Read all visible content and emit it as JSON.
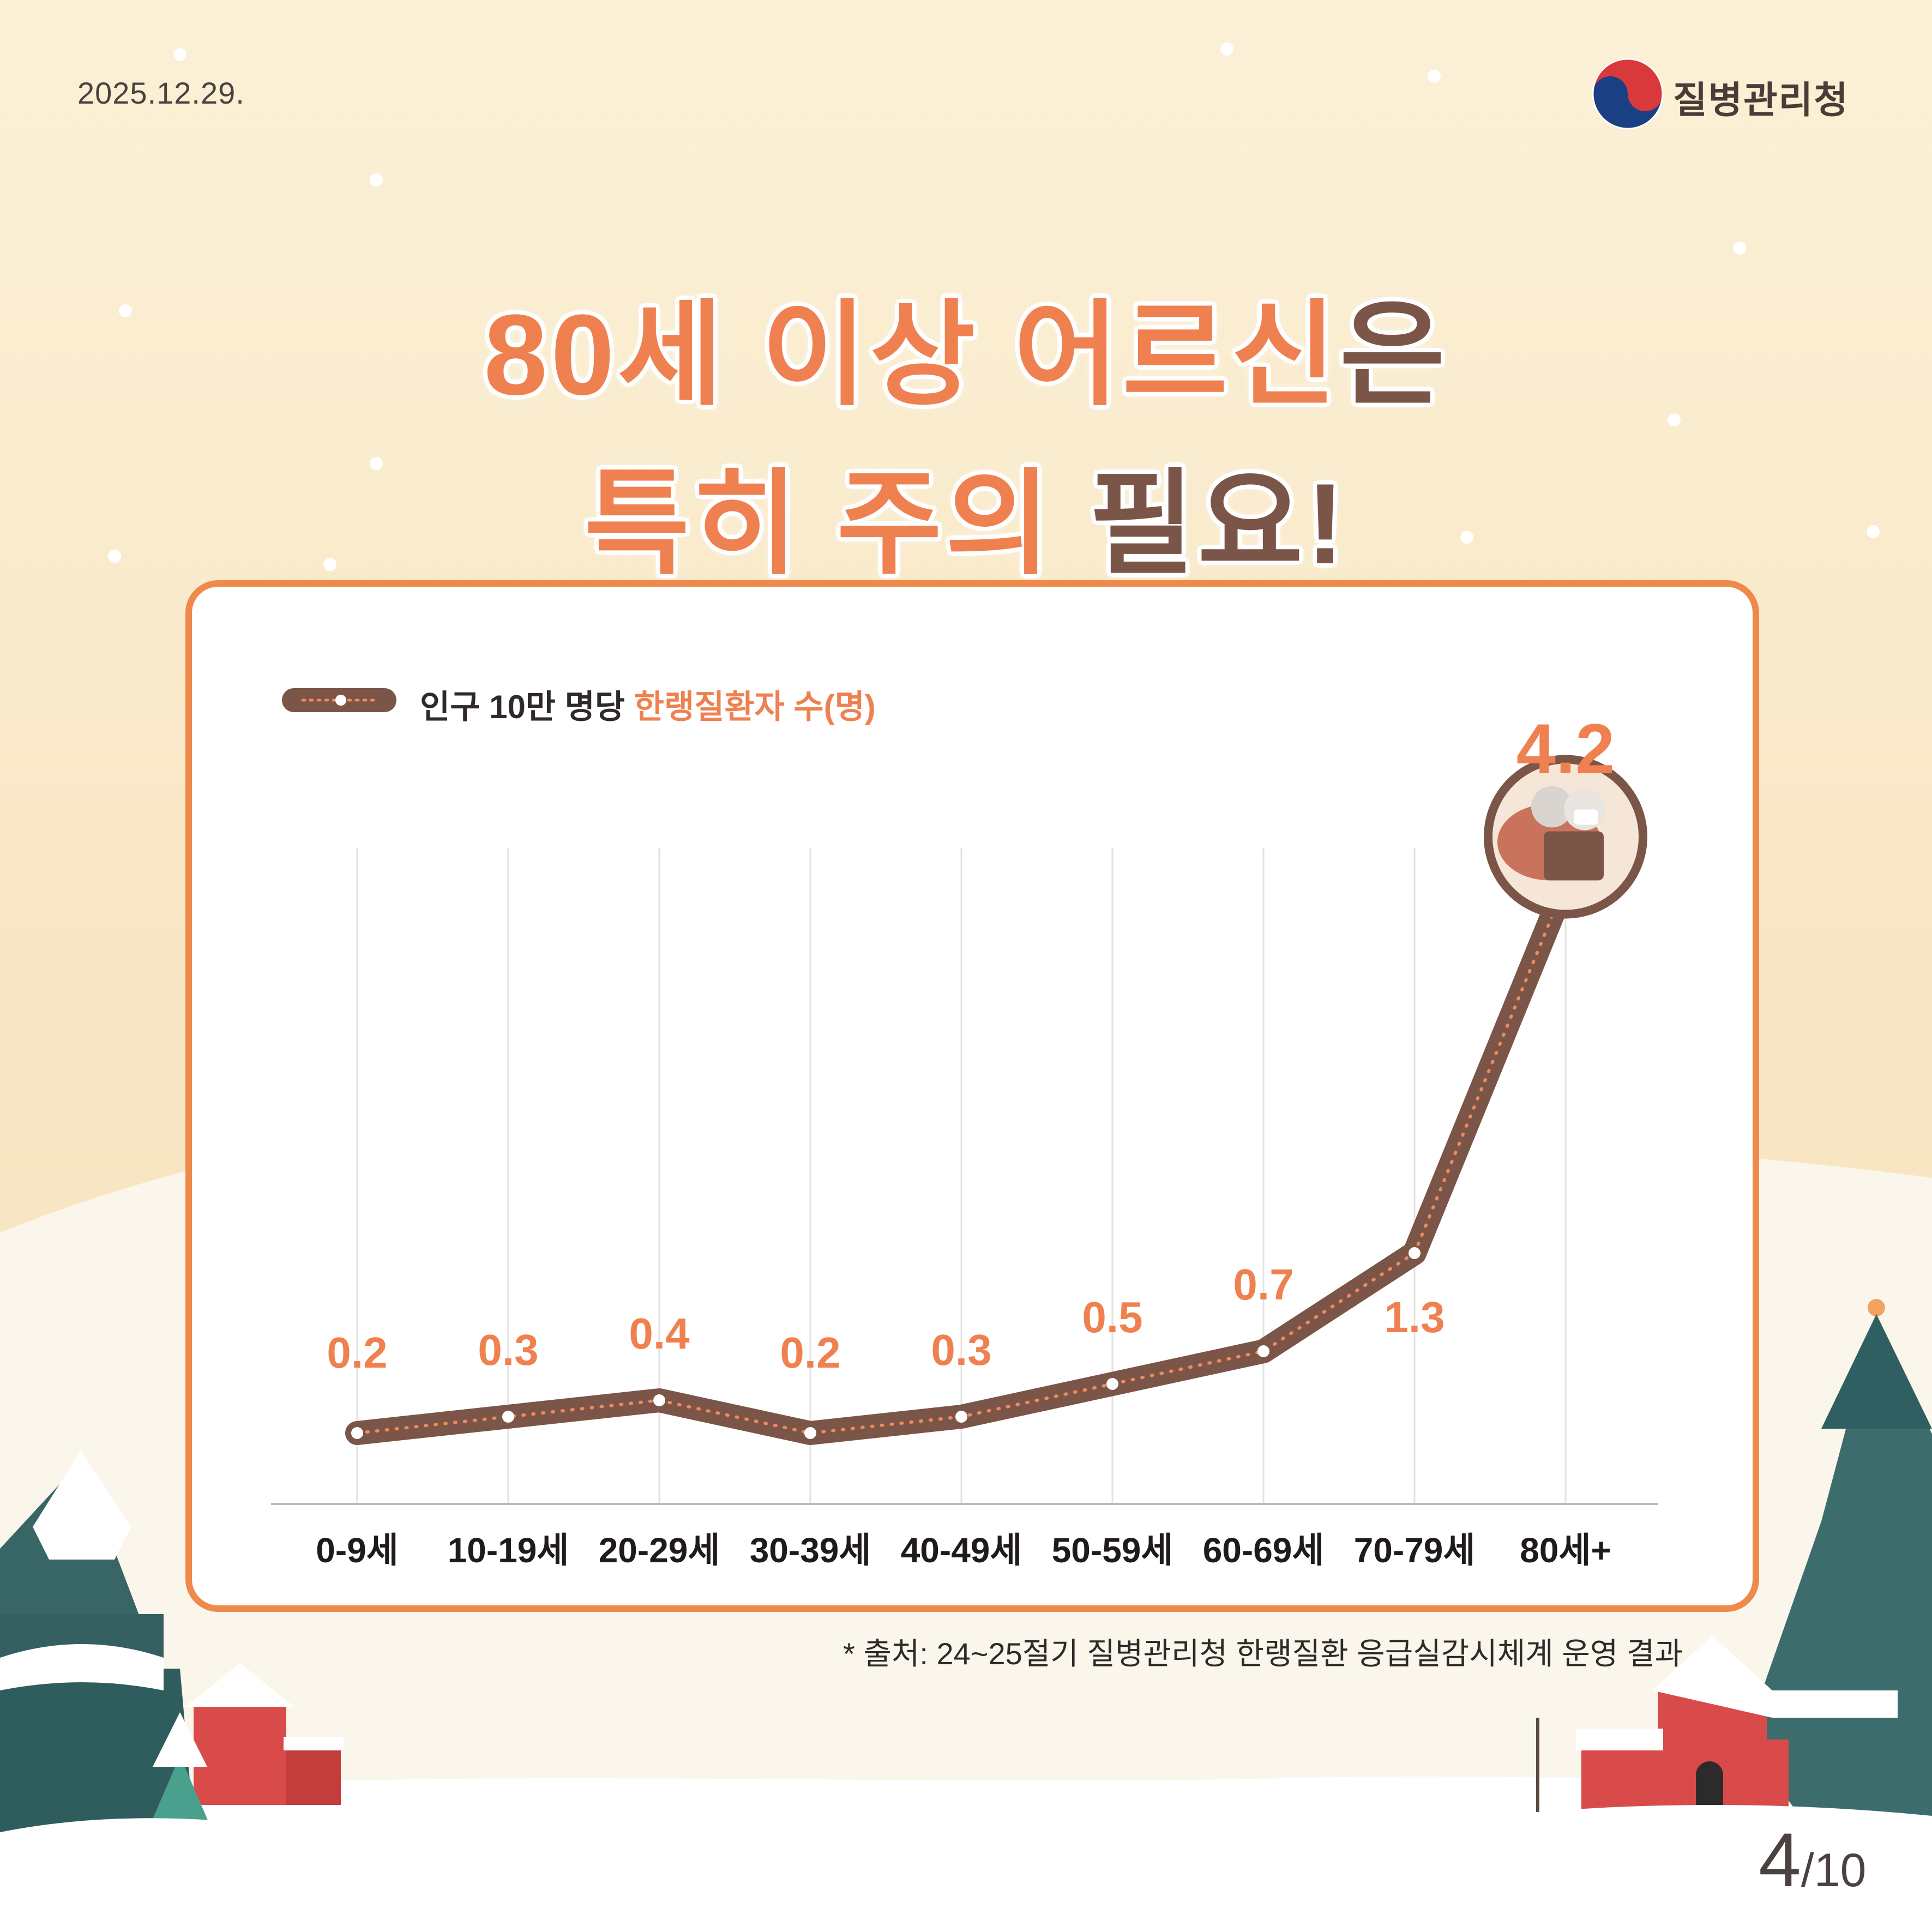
{
  "header": {
    "date": "2025.12.29.",
    "agency": "질병관리청"
  },
  "title": {
    "line1": [
      {
        "text": "80세 이상 어르신",
        "color": "#ef8150"
      },
      {
        "text": "은",
        "color": "#7b5548"
      }
    ],
    "line2": [
      {
        "text": "특히 주의 ",
        "color": "#ef8150"
      },
      {
        "text": "필요!",
        "color": "#7b5548"
      }
    ]
  },
  "legend": {
    "prefix": "인구 10만 명당 ",
    "highlight": "한랭질환자 수(명)"
  },
  "chart_data": {
    "type": "line",
    "categories": [
      "0-9세",
      "10-19세",
      "20-29세",
      "30-39세",
      "40-49세",
      "50-59세",
      "60-69세",
      "70-79세",
      "80세+"
    ],
    "series": [
      {
        "name": "인구 10만 명당 한랭질환자 수(명)",
        "values": [
          0.2,
          0.3,
          0.4,
          0.2,
          0.3,
          0.5,
          0.7,
          1.3,
          4.2
        ]
      }
    ],
    "data_labels": [
      "0.2",
      "0.3",
      "0.4",
      "0.2",
      "0.3",
      "0.5",
      "0.7",
      "1.3",
      "4.2"
    ],
    "grid": "vertical",
    "colors": {
      "line": "#7b5548",
      "dots": "#f08a5d",
      "labels": "#ef8150"
    }
  },
  "source": "* 출처: 24~25절기 질병관리청 한랭질환 응급실감시체계 운영 결과",
  "pagination": {
    "current": "4",
    "total": "/10"
  },
  "colors": {
    "accent": "#ef8150",
    "brown": "#7b5548",
    "panel_border": "#ef8a4c"
  }
}
